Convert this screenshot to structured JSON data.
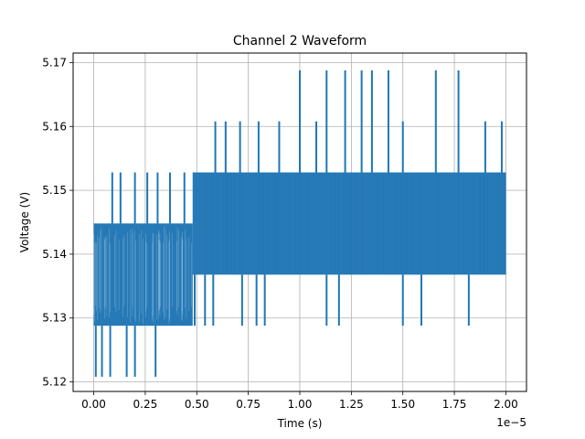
{
  "chart_data": {
    "type": "line",
    "title": "Channel 2 Waveform",
    "xlabel": "Time (s)",
    "ylabel": "Voltage (V)",
    "x_offset_label": "1e−5",
    "xlim": [
      -1e-06,
      2.1e-05
    ],
    "ylim": [
      5.1185,
      5.1715
    ],
    "grid": true,
    "x_ticks": [
      0,
      2.5e-06,
      5e-06,
      7.5e-06,
      1e-05,
      1.25e-05,
      1.5e-05,
      1.75e-05,
      2e-05
    ],
    "x_tick_labels": [
      "0.00",
      "0.25",
      "0.50",
      "0.75",
      "1.00",
      "1.25",
      "1.50",
      "1.75",
      "2.00"
    ],
    "y_ticks": [
      5.12,
      5.13,
      5.14,
      5.15,
      5.16,
      5.17
    ],
    "y_tick_labels": [
      "5.12",
      "5.13",
      "5.14",
      "5.15",
      "5.16",
      "5.17"
    ],
    "series": [
      {
        "color": "#1f77b4",
        "x_start": 0,
        "x_end": 2e-05,
        "quantization_levels": [
          5.1208,
          5.1288,
          5.1368,
          5.1448,
          5.1528,
          5.1608,
          5.1688
        ],
        "segments": [
          {
            "x_start": 0,
            "x_end": 4.8e-06,
            "low": 5.1288,
            "high": 5.1448
          },
          {
            "x_start": 4.8e-06,
            "x_end": 2e-05,
            "low": 5.1368,
            "high": 5.1528
          }
        ],
        "low_spikes": [
          {
            "x": 1e-07,
            "y": 5.1208
          },
          {
            "x": 4e-07,
            "y": 5.1208
          },
          {
            "x": 8e-07,
            "y": 5.1208
          },
          {
            "x": 1.6e-06,
            "y": 5.1208
          },
          {
            "x": 2e-06,
            "y": 5.1208
          },
          {
            "x": 3e-06,
            "y": 5.1208
          },
          {
            "x": 4.9e-06,
            "y": 5.1288
          },
          {
            "x": 5.4e-06,
            "y": 5.1288
          },
          {
            "x": 5.8e-06,
            "y": 5.1288
          },
          {
            "x": 7.2e-06,
            "y": 5.1288
          },
          {
            "x": 7.9e-06,
            "y": 5.1288
          },
          {
            "x": 8.3e-06,
            "y": 5.1288
          },
          {
            "x": 1.13e-05,
            "y": 5.1288
          },
          {
            "x": 1.19e-05,
            "y": 5.1288
          },
          {
            "x": 1.5e-05,
            "y": 5.1288
          },
          {
            "x": 1.59e-05,
            "y": 5.1288
          },
          {
            "x": 1.82e-05,
            "y": 5.1288
          }
        ],
        "high_spikes": [
          {
            "x": 9e-07,
            "y": 5.1528
          },
          {
            "x": 1.3e-06,
            "y": 5.1528
          },
          {
            "x": 2e-06,
            "y": 5.1528
          },
          {
            "x": 2.6e-06,
            "y": 5.1528
          },
          {
            "x": 3.1e-06,
            "y": 5.1528
          },
          {
            "x": 3.7e-06,
            "y": 5.1528
          },
          {
            "x": 4.4e-06,
            "y": 5.1528
          },
          {
            "x": 5.9e-06,
            "y": 5.1608
          },
          {
            "x": 6.4e-06,
            "y": 5.1608
          },
          {
            "x": 7.1e-06,
            "y": 5.1608
          },
          {
            "x": 8e-06,
            "y": 5.1608
          },
          {
            "x": 9e-06,
            "y": 5.1608
          },
          {
            "x": 1e-05,
            "y": 5.1688
          },
          {
            "x": 1.08e-05,
            "y": 5.1608
          },
          {
            "x": 1.13e-05,
            "y": 5.1688
          },
          {
            "x": 1.22e-05,
            "y": 5.1688
          },
          {
            "x": 1.3e-05,
            "y": 5.1688
          },
          {
            "x": 1.35e-05,
            "y": 5.1688
          },
          {
            "x": 1.43e-05,
            "y": 5.1688
          },
          {
            "x": 1.5e-05,
            "y": 5.1608
          },
          {
            "x": 1.66e-05,
            "y": 5.1688
          },
          {
            "x": 1.77e-05,
            "y": 5.1688
          },
          {
            "x": 1.9e-05,
            "y": 5.1608
          },
          {
            "x": 1.98e-05,
            "y": 5.1608
          }
        ]
      }
    ]
  }
}
